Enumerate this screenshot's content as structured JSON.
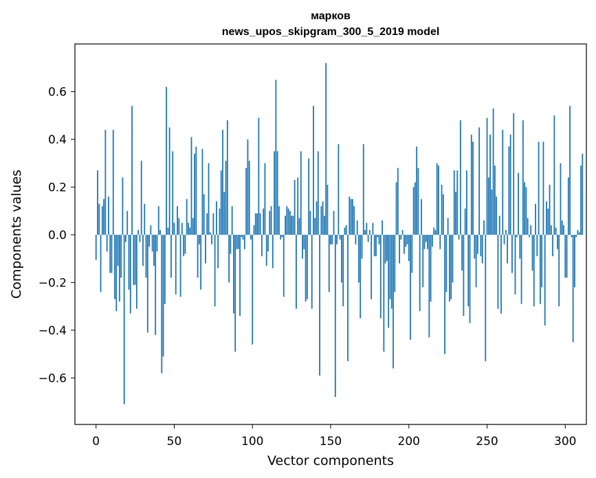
{
  "chart_data": {
    "type": "bar",
    "title": "марков",
    "subtitle": "news_upos_skipgram_300_5_2019 model",
    "xlabel": "Vector components",
    "ylabel": "Components values",
    "xlim": [
      -13.5,
      313.5
    ],
    "ylim": [
      -0.795,
      0.8
    ],
    "xticks": [
      0,
      50,
      100,
      150,
      200,
      250,
      300
    ],
    "xtick_labels": [
      "0",
      "50",
      "100",
      "150",
      "200",
      "250",
      "300"
    ],
    "yticks": [
      -0.6,
      -0.4,
      -0.2,
      0.0,
      0.2,
      0.4,
      0.6
    ],
    "ytick_labels": [
      "−0.6",
      "−0.4",
      "−0.2",
      "0.0",
      "0.2",
      "0.4",
      "0.6"
    ],
    "grid": false,
    "legend": "none",
    "bar_color": "#1f77b4",
    "categories_start": 0,
    "values": [
      -0.105,
      0.27,
      0.13,
      -0.24,
      0.12,
      0.15,
      0.44,
      -0.07,
      0.16,
      -0.16,
      -0.16,
      0.44,
      -0.27,
      -0.32,
      -0.13,
      -0.28,
      -0.18,
      0.24,
      -0.71,
      -0.03,
      0.1,
      -0.23,
      -0.33,
      0.54,
      -0.21,
      -0.21,
      -0.31,
      0.02,
      -0.03,
      0.31,
      -0.13,
      0.13,
      -0.18,
      -0.41,
      -0.05,
      0.04,
      -0.07,
      -0.13,
      -0.42,
      -0.07,
      0.12,
      0.02,
      -0.58,
      -0.51,
      -0.29,
      0.62,
      0.03,
      0.45,
      -0.18,
      0.35,
      0.05,
      -0.25,
      0.12,
      0.07,
      -0.26,
      0.05,
      -0.09,
      -0.08,
      0.15,
      0.05,
      0.03,
      0.41,
      0.07,
      0.34,
      0.37,
      -0.18,
      -0.04,
      -0.23,
      0.36,
      0.17,
      -0.12,
      0.09,
      0.3,
      0.01,
      -0.04,
      0.09,
      -0.3,
      0.14,
      -0.14,
      0.11,
      0.27,
      0.44,
      0.18,
      0.31,
      0.48,
      -0.2,
      -0.08,
      0.12,
      -0.33,
      -0.49,
      -0.06,
      -0.06,
      -0.34,
      -0.01,
      -0.02,
      -0.06,
      0.28,
      0.4,
      0.31,
      -0.02,
      -0.46,
      0.04,
      0.09,
      0.09,
      0.49,
      0.09,
      -0.09,
      0.11,
      0.3,
      -0.13,
      -0.07,
      0.1,
      0.12,
      -0.14,
      0.35,
      0.65,
      0.35,
      0.12,
      -0.02,
      -0.01,
      -0.26,
      0.08,
      0.12,
      0.11,
      0.1,
      0.08,
      0.08,
      0.23,
      -0.31,
      0.24,
      0.07,
      0.35,
      -0.1,
      -0.06,
      -0.28,
      -0.27,
      0.32,
      0.1,
      -0.31,
      0.54,
      0.07,
      0.14,
      0.35,
      -0.59,
      0.12,
      0.14,
      0.08,
      0.72,
      0.21,
      -0.24,
      -0.04,
      -0.04,
      0.1,
      -0.68,
      -0.04,
      0.38,
      -0.02,
      -0.2,
      -0.3,
      0.03,
      0.04,
      -0.53,
      0.16,
      0.15,
      0.15,
      0.12,
      -0.04,
      0.06,
      -0.2,
      -0.35,
      -0.1,
      0.38,
      0.02,
      0.05,
      -0.03,
      0.02,
      -0.27,
      0.05,
      -0.09,
      -0.09,
      -0.01,
      -0.04,
      -0.35,
      0.06,
      -0.49,
      -0.12,
      -0.11,
      -0.39,
      -0.27,
      -0.31,
      -0.56,
      -0.24,
      0.22,
      0.28,
      -0.12,
      -0.02,
      0.02,
      -0.08,
      -0.05,
      -0.04,
      -0.11,
      -0.44,
      -0.16,
      0.2,
      0.22,
      0.37,
      0.28,
      -0.32,
      0.15,
      -0.22,
      -0.06,
      -0.03,
      -0.06,
      -0.43,
      -0.28,
      -0.05,
      0.03,
      0.02,
      0.3,
      0.29,
      -0.06,
      0.21,
      0.17,
      -0.5,
      -0.24,
      0.07,
      -0.28,
      -0.27,
      -0.2,
      0.27,
      0.18,
      0.27,
      -0.02,
      0.48,
      -0.15,
      -0.34,
      0.11,
      0.27,
      -0.3,
      -0.37,
      0.42,
      0.39,
      -0.1,
      -0.22,
      -0.08,
      0.45,
      -0.09,
      -0.12,
      0.06,
      -0.53,
      0.49,
      0.24,
      0.42,
      0.19,
      0.53,
      0.29,
      0.16,
      -0.31,
      0.08,
      -0.33,
      0.44,
      -0.04,
      0.02,
      -0.12,
      0.37,
      0.42,
      -0.16,
      0.51,
      -0.25,
      -0.01,
      0.26,
      -0.1,
      -0.29,
      0.48,
      0.22,
      0.2,
      0.07,
      -0.01,
      0.04,
      -0.15,
      -0.3,
      0.13,
      -0.09,
      0.39,
      -0.29,
      -0.22,
      0.39,
      -0.38,
      0.14,
      0.11,
      0.21,
      0.04,
      -0.09,
      0.5,
      0.03,
      -0.06,
      -0.3,
      0.3,
      0.06,
      0.04,
      -0.18,
      -0.18,
      0.24,
      0.54,
      -0.01,
      -0.45,
      -0.22,
      -0.01,
      0.02,
      0.01,
      0.29,
      0.34
    ]
  }
}
